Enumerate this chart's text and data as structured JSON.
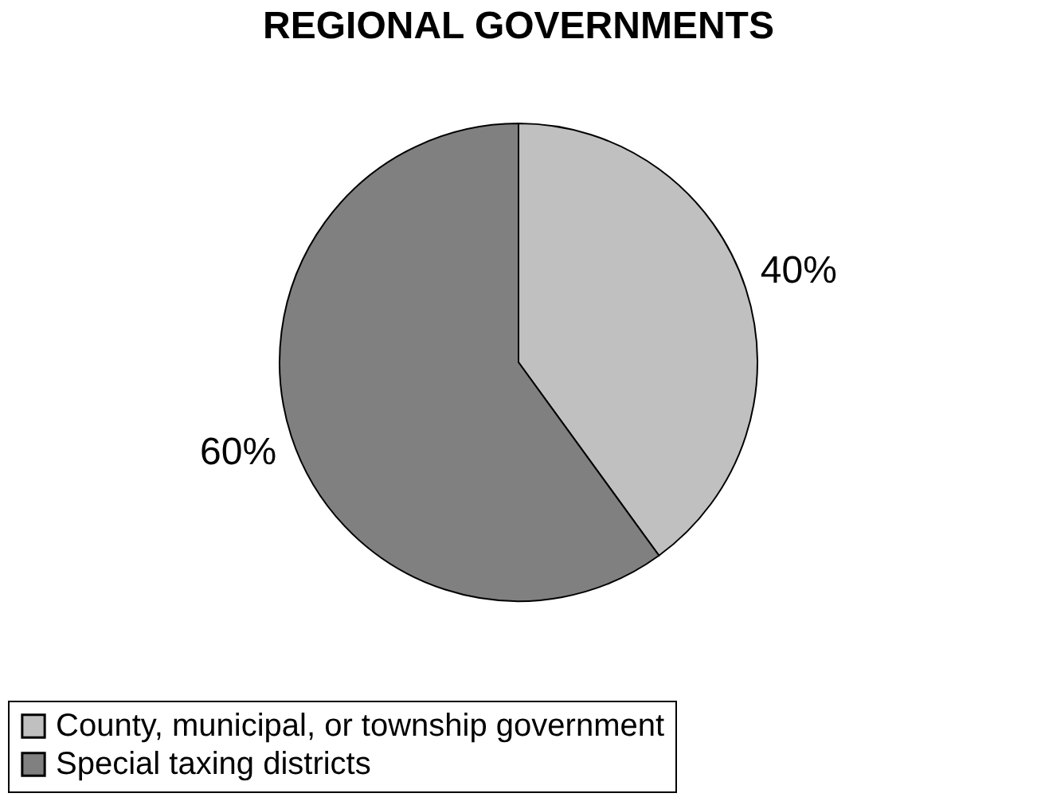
{
  "chart_data": {
    "type": "pie",
    "title": "REGIONAL GOVERNMENTS",
    "categories": [
      "County, municipal, or township government",
      "Special taxing districts"
    ],
    "values": [
      40,
      60
    ],
    "colors": [
      "#c0c0c0",
      "#808080"
    ],
    "value_labels": [
      "40%",
      "60%"
    ],
    "legend": "bottom"
  }
}
